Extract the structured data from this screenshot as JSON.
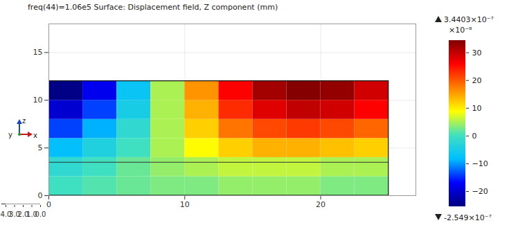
{
  "chart_data": {
    "type": "heatmap",
    "title": "freq(44)=1.06e5   Surface: Displacement field, Z component (mm)",
    "xlim": [
      0,
      27
    ],
    "xticks": [
      0,
      10,
      20
    ],
    "zlim": [
      0,
      18
    ],
    "zticks": [
      0,
      5,
      10,
      15
    ],
    "ylim": [
      0,
      4
    ],
    "yticks": [
      0,
      1,
      2,
      3,
      4
    ],
    "grid": true,
    "triad_labels": [
      "y",
      "z",
      "x"
    ],
    "interface_z": 3.5,
    "cells": {
      "x_edges": [
        0,
        2.5,
        5,
        7.5,
        10,
        12.5,
        15,
        17.5,
        20,
        22.5,
        25
      ],
      "z_edges": [
        0,
        2,
        4,
        6,
        8,
        10,
        12
      ],
      "values": [
        [
          0,
          1,
          2,
          3,
          3,
          4,
          4,
          4,
          3,
          3
        ],
        [
          -2,
          0,
          2,
          4,
          5,
          6,
          6,
          6,
          5,
          5
        ],
        [
          -8,
          -4,
          0,
          5,
          9,
          12,
          14,
          14,
          13,
          12
        ],
        [
          -14,
          -9,
          -2,
          5,
          12,
          18,
          21,
          22,
          21,
          19
        ],
        [
          -20,
          -14,
          -5,
          5,
          14,
          23,
          28,
          30,
          29,
          26
        ],
        [
          -25,
          -18,
          -7,
          5,
          16,
          26,
          32,
          34,
          33,
          29
        ]
      ]
    },
    "colorbar": {
      "range": [
        -25.49,
        34.403
      ],
      "ticks": [
        -20,
        -10,
        0,
        10,
        20,
        30
      ],
      "multiplier_label": "×10⁻⁸",
      "max": 34.403,
      "max_label": "3.4403×10⁻⁷",
      "min": -25.49,
      "min_label": "-2.549×10⁻⁷"
    }
  }
}
